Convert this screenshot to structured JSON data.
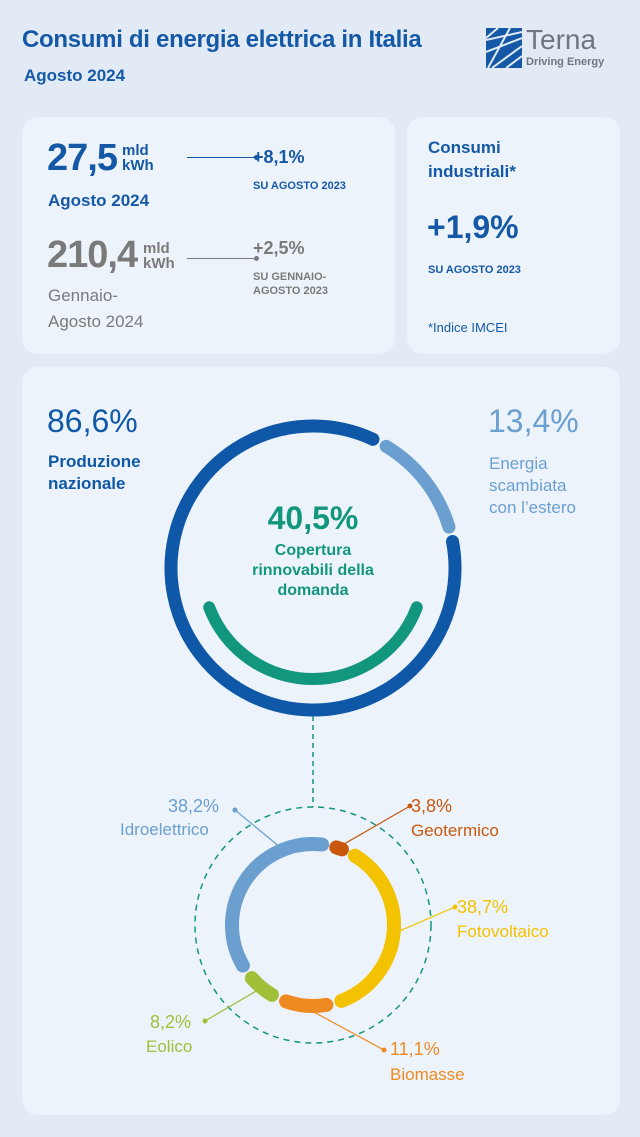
{
  "header": {
    "title": "Consumi di energia elettrica in Italia",
    "subtitle": "Agosto 2024",
    "logo_text": "Terna",
    "logo_tagline": "Driving Energy"
  },
  "monthly": {
    "value": "27,5",
    "unit_top": "mld",
    "unit_bottom": "kWh",
    "period": "Agosto 2024",
    "change": "+8,1%",
    "change_ref": "SU AGOSTO 2023"
  },
  "ytd": {
    "value": "210,4",
    "unit_top": "mld",
    "unit_bottom": "kWh",
    "period_line1": "Gennaio-",
    "period_line2": "Agosto 2024",
    "change": "+2,5%",
    "change_ref_line1": "SU GENNAIO-",
    "change_ref_line2": "AGOSTO 2023"
  },
  "industrial": {
    "title_line1": "Consumi",
    "title_line2": "industriali*",
    "change": "+1,9%",
    "change_ref": "SU AGOSTO 2023",
    "footnote": "*Indice IMCEI"
  },
  "chart_data": [
    {
      "type": "pie",
      "subtype": "donut",
      "series": [
        {
          "name": "Produzione nazionale",
          "value": 86.6,
          "label": "86,6%",
          "label_line1": "Produzione",
          "label_line2": "nazionale",
          "color": "#0f58a8"
        },
        {
          "name": "Energia scambiata con l'estero",
          "value": 13.4,
          "label": "13,4%",
          "label_line1": "Energia",
          "label_line2": "scambiata",
          "label_line3": "con l’estero",
          "color": "#6a9fd0"
        }
      ],
      "inner": {
        "value": 40.5,
        "label": "40,5%",
        "text_line1": "Copertura",
        "text_line2": "rinnovabili della",
        "text_line3": "domanda",
        "color": "#13967e"
      }
    },
    {
      "type": "pie",
      "subtype": "donut",
      "series": [
        {
          "name": "Geotermico",
          "value": 3.8,
          "label": "3,8%",
          "color": "#c9580e"
        },
        {
          "name": "Fotovoltaico",
          "value": 38.7,
          "label": "38,7%",
          "color": "#f3c200"
        },
        {
          "name": "Biomasse",
          "value": 11.1,
          "label": "11,1%",
          "color": "#ee8a22"
        },
        {
          "name": "Eolico",
          "value": 8.2,
          "label": "8,2%",
          "color": "#a0c03a"
        },
        {
          "name": "Idroelettrico",
          "value": 38.2,
          "label": "38,2%",
          "color": "#6a9fd0"
        }
      ]
    }
  ]
}
